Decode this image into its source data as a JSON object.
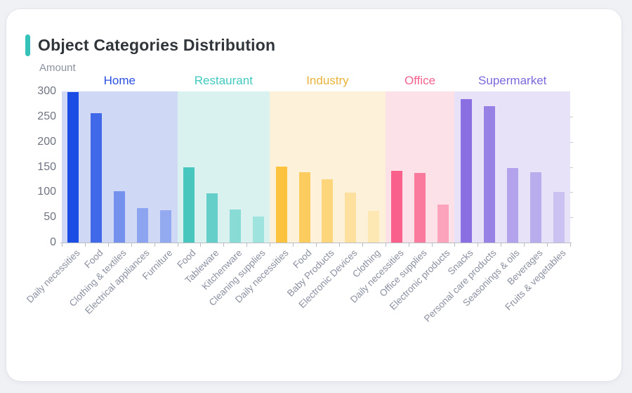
{
  "card": {
    "title": "Object Categories Distribution",
    "accent_color": "#35c2b9"
  },
  "chart_data": {
    "type": "bar",
    "title": "Object Categories Distribution",
    "xlabel": "",
    "ylabel": "Amount",
    "ylim": [
      0,
      300
    ],
    "y_ticks": [
      0,
      50,
      100,
      150,
      200,
      250,
      300
    ],
    "grid": false,
    "legend_position": "none",
    "groups": [
      {
        "name": "Home",
        "label_color": "#2b50e0",
        "band_color": "#cfd9f6",
        "bars": [
          {
            "label": "Daily necessities",
            "value": 298,
            "color": "#1b4de4"
          },
          {
            "label": "Food",
            "value": 257,
            "color": "#3f69e8"
          },
          {
            "label": "Clothing & textiles",
            "value": 102,
            "color": "#7591ee"
          },
          {
            "label": "Electrical appliances",
            "value": 69,
            "color": "#8da4f0"
          },
          {
            "label": "Furniture",
            "value": 64,
            "color": "#93a9f0"
          }
        ]
      },
      {
        "name": "Restaurant",
        "label_color": "#41c8bf",
        "band_color": "#d9f1ef",
        "bars": [
          {
            "label": "Food",
            "value": 149,
            "color": "#46c6bd"
          },
          {
            "label": "Tableware",
            "value": 97,
            "color": "#63cfc8"
          },
          {
            "label": "Kitchenware",
            "value": 65,
            "color": "#89dcd6"
          },
          {
            "label": "Cleaning supplies",
            "value": 51,
            "color": "#9fe3de"
          }
        ]
      },
      {
        "name": "Industry",
        "label_color": "#e9b33c",
        "band_color": "#fdf2d9",
        "bars": [
          {
            "label": "Daily necessities",
            "value": 151,
            "color": "#fdc33e"
          },
          {
            "label": "Food",
            "value": 139,
            "color": "#fdcc5e"
          },
          {
            "label": "Baby Products",
            "value": 126,
            "color": "#fdd57b"
          },
          {
            "label": "Electronic Devices",
            "value": 99,
            "color": "#fde09e"
          },
          {
            "label": "Clothing",
            "value": 63,
            "color": "#fde7b2"
          }
        ]
      },
      {
        "name": "Office",
        "label_color": "#f6618d",
        "band_color": "#fde1e9",
        "bars": [
          {
            "label": "Daily necessities",
            "value": 142,
            "color": "#f9618c"
          },
          {
            "label": "Office supplies",
            "value": 138,
            "color": "#fa7a9d"
          },
          {
            "label": "Electronic products",
            "value": 75,
            "color": "#fba4bc"
          }
        ]
      },
      {
        "name": "Supermarket",
        "label_color": "#7a68dd",
        "band_color": "#e7e2f8",
        "bars": [
          {
            "label": "Snacks",
            "value": 285,
            "color": "#8a6fe2"
          },
          {
            "label": "Personal care products",
            "value": 271,
            "color": "#9781e5"
          },
          {
            "label": "Seasonings & oils",
            "value": 148,
            "color": "#b3a3ec"
          },
          {
            "label": "Beverages",
            "value": 140,
            "color": "#baadee"
          },
          {
            "label": "Fruits & vegetables",
            "value": 101,
            "color": "#ccc2f2"
          }
        ]
      }
    ]
  }
}
